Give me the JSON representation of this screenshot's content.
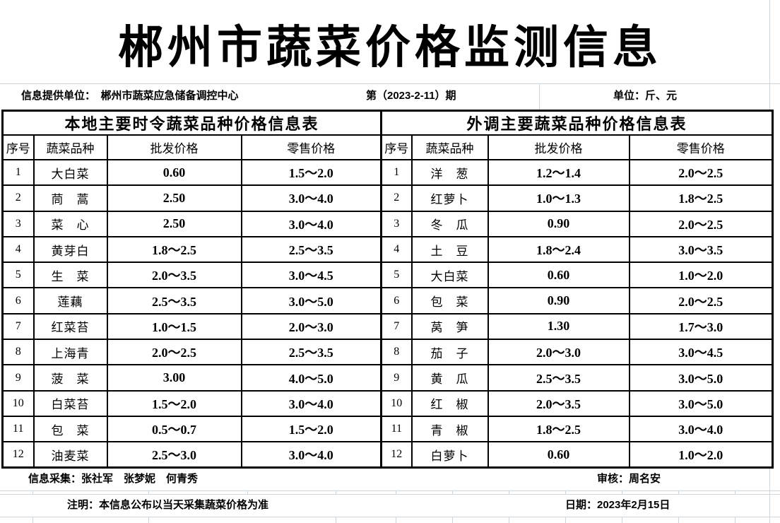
{
  "title": "郴州市蔬菜价格监测信息",
  "info_bar": {
    "provider": "信息提供单位：　郴州市蔬菜应急储备调控中心",
    "issue": "第（2023-2-11）期",
    "unit": "单位：斤、元"
  },
  "tables": [
    {
      "caption": "本地主要时令蔬菜品种价格信息表",
      "headers": [
        "序号",
        "蔬菜品种",
        "批发价格",
        "零售价格"
      ],
      "rows": [
        [
          "1",
          "大白菜",
          "0.60",
          "1.5～2.0"
        ],
        [
          "2",
          "茼　蒿",
          "2.50",
          "3.0～4.0"
        ],
        [
          "3",
          "菜　心",
          "2.50",
          "3.0～4.0"
        ],
        [
          "4",
          "黄芽白",
          "1.8～2.5",
          "2.5～3.5"
        ],
        [
          "5",
          "生　菜",
          "2.0～3.5",
          "3.0～4.5"
        ],
        [
          "6",
          "莲藕",
          "2.5～3.5",
          "3.0～5.0"
        ],
        [
          "7",
          "红菜苔",
          "1.0～1.5",
          "2.0～3.0"
        ],
        [
          "8",
          "上海青",
          "2.0～2.5",
          "2.5～3.5"
        ],
        [
          "9",
          "菠　菜",
          "3.00",
          "4.0～5.0"
        ],
        [
          "10",
          "白菜苔",
          "1.5～2.0",
          "3.0～4.0"
        ],
        [
          "11",
          "包　菜",
          "0.5～0.7",
          "1.5～2.0"
        ],
        [
          "12",
          "油麦菜",
          "2.5～3.0",
          "3.0～4.0"
        ]
      ]
    },
    {
      "caption": "外调主要蔬菜品种价格信息表",
      "headers": [
        "序号",
        "蔬菜品种",
        "批发价格",
        "零售价格"
      ],
      "rows": [
        [
          "1",
          "洋　葱",
          "1.2～1.4",
          "2.0～2.5"
        ],
        [
          "2",
          "红萝卜",
          "1.0～1.3",
          "1.8～2.5"
        ],
        [
          "3",
          "冬　瓜",
          "0.90",
          "2.0～2.5"
        ],
        [
          "4",
          "土　豆",
          "1.8～2.4",
          "3.0～3.5"
        ],
        [
          "5",
          "大白菜",
          "0.60",
          "1.0～2.0"
        ],
        [
          "6",
          "包　菜",
          "0.90",
          "2.0～2.5"
        ],
        [
          "7",
          "莴　笋",
          "1.30",
          "1.7～3.0"
        ],
        [
          "8",
          "茄　子",
          "2.0～3.0",
          "3.0～4.5"
        ],
        [
          "9",
          "黄　瓜",
          "2.5～3.5",
          "3.0～5.0"
        ],
        [
          "10",
          "红　椒",
          "2.0～3.5",
          "3.0～5.0"
        ],
        [
          "11",
          "青　椒",
          "1.8～2.5",
          "3.0～4.0"
        ],
        [
          "12",
          "白萝卜",
          "0.60",
          "1.0～2.0"
        ]
      ]
    }
  ],
  "footer": {
    "collector": "信息采集：张社军　张梦妮　何青秀",
    "reviewer": "审核：周名安",
    "note": "注明：本信息公布以当天采集蔬菜价格为准",
    "date": "日期：2023年2月15日"
  },
  "colors": {
    "gridline": "#ccd6dc",
    "table_border": "#000000",
    "text": "#000000"
  }
}
